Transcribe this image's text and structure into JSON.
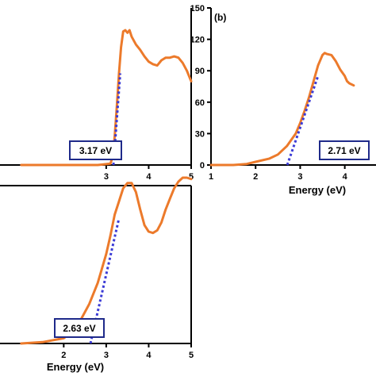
{
  "chart_data": [
    {
      "type": "line",
      "panel_label": "",
      "xlabel": "",
      "ylabel": "",
      "xlim": [
        1,
        5
      ],
      "ylim": [
        0,
        120
      ],
      "x_ticks": [
        3,
        4,
        5
      ],
      "y_ticks": [],
      "series": [
        {
          "name": "",
          "color": "#ec7a2b",
          "x": [
            1.0,
            2.0,
            2.8,
            3.1,
            3.15,
            3.2,
            3.25,
            3.3,
            3.35,
            3.4,
            3.45,
            3.5,
            3.55,
            3.6,
            3.7,
            3.8,
            3.9,
            4.0,
            4.1,
            4.2,
            4.3,
            4.4,
            4.5,
            4.6,
            4.7,
            4.8,
            4.9,
            5.0
          ],
          "y": [
            0,
            0,
            0,
            1,
            6,
            22,
            45,
            70,
            90,
            102,
            103,
            101,
            103,
            98,
            92,
            88,
            83,
            79,
            77,
            76,
            80,
            82,
            82,
            83,
            82,
            78,
            72,
            64
          ]
        }
      ],
      "fit_line": {
        "color": "#3b3bd6",
        "x": [
          3.17,
          3.33
        ],
        "y": [
          0,
          70
        ]
      },
      "annotation": "3.17 eV"
    },
    {
      "type": "line",
      "panel_label": "(b)",
      "xlabel": "Energy (eV)",
      "ylabel": "",
      "xlim": [
        1,
        4.7
      ],
      "ylim": [
        0,
        150
      ],
      "x_ticks": [
        1,
        2,
        3,
        4
      ],
      "y_ticks": [
        0,
        30,
        60,
        90,
        120,
        150
      ],
      "series": [
        {
          "name": "",
          "color": "#ec7a2b",
          "x": [
            1.0,
            1.5,
            1.8,
            2.0,
            2.3,
            2.5,
            2.7,
            2.9,
            3.0,
            3.1,
            3.2,
            3.3,
            3.4,
            3.5,
            3.55,
            3.6,
            3.7,
            3.8,
            3.9,
            4.0,
            4.05,
            4.1,
            4.2
          ],
          "y": [
            0,
            0,
            1,
            3,
            6,
            10,
            18,
            30,
            40,
            52,
            65,
            80,
            95,
            105,
            107,
            106,
            105,
            99,
            91,
            85,
            80,
            78,
            76
          ]
        }
      ],
      "fit_line": {
        "color": "#3b3bd6",
        "x": [
          2.71,
          3.4
        ],
        "y": [
          0,
          85
        ]
      },
      "annotation": "2.71 eV"
    },
    {
      "type": "line",
      "panel_label": "",
      "xlabel": "Energy (eV)",
      "ylabel": "",
      "xlim": [
        1,
        5
      ],
      "ylim": [
        0,
        120
      ],
      "x_ticks": [
        2,
        3,
        4,
        5
      ],
      "y_ticks": [],
      "series": [
        {
          "name": "",
          "color": "#ec7a2b",
          "x": [
            1.0,
            1.5,
            2.0,
            2.2,
            2.4,
            2.6,
            2.8,
            3.0,
            3.1,
            3.2,
            3.3,
            3.4,
            3.5,
            3.6,
            3.7,
            3.8,
            3.9,
            4.0,
            4.1,
            4.2,
            4.3,
            4.4,
            4.5,
            4.6,
            4.7,
            4.8,
            4.9,
            5.0
          ],
          "y": [
            0,
            1,
            4,
            9,
            18,
            30,
            46,
            68,
            82,
            98,
            108,
            118,
            122,
            122,
            115,
            102,
            90,
            85,
            84,
            86,
            92,
            102,
            110,
            118,
            123,
            126,
            126,
            125
          ]
        }
      ],
      "fit_line": {
        "color": "#3b3bd6",
        "x": [
          2.63,
          3.3
        ],
        "y": [
          0,
          95
        ]
      },
      "annotation": "2.63 eV"
    }
  ]
}
